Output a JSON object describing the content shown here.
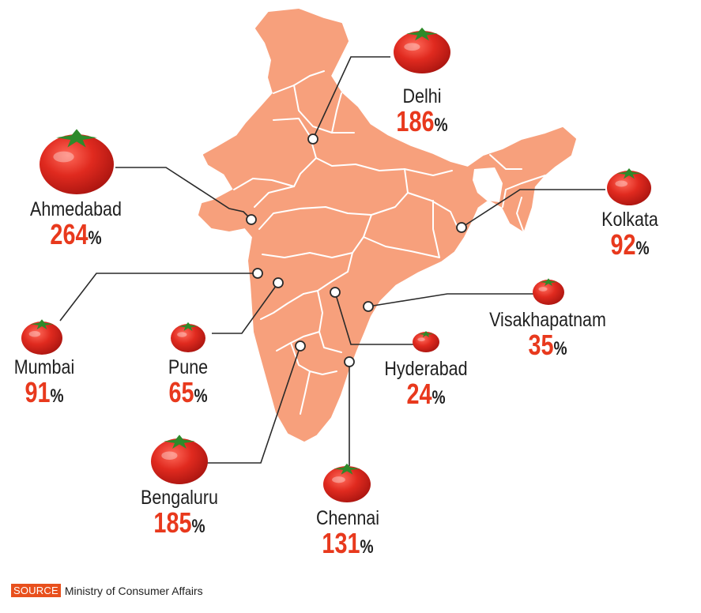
{
  "title": "",
  "source": {
    "tag": "SOURCE",
    "text": "Ministry of Consumer Affairs"
  },
  "percent_sign": "%",
  "colors": {
    "map_fill": "#f7a07c",
    "border": "#ffffff",
    "value": "#e8391d",
    "label": "#1f1f1f",
    "tomato": "#d9261c"
  },
  "cities": [
    {
      "id": "delhi",
      "name": "Delhi",
      "value": "186",
      "icon": "tomato-icon"
    },
    {
      "id": "ahmedabad",
      "name": "Ahmedabad",
      "value": "264",
      "icon": "tomato-icon"
    },
    {
      "id": "kolkata",
      "name": "Kolkata",
      "value": "92",
      "icon": "tomato-icon"
    },
    {
      "id": "mumbai",
      "name": "Mumbai",
      "value": "91",
      "icon": "tomato-icon"
    },
    {
      "id": "pune",
      "name": "Pune",
      "value": "65",
      "icon": "tomato-icon"
    },
    {
      "id": "visakhapatnam",
      "name": "Visakhapatnam",
      "value": "35",
      "icon": "tomato-icon"
    },
    {
      "id": "hyderabad",
      "name": "Hyderabad",
      "value": "24",
      "icon": "tomato-icon"
    },
    {
      "id": "bengaluru",
      "name": "Bengaluru",
      "value": "185",
      "icon": "tomato-icon"
    },
    {
      "id": "chennai",
      "name": "Chennai",
      "value": "131",
      "icon": "tomato-icon"
    }
  ]
}
